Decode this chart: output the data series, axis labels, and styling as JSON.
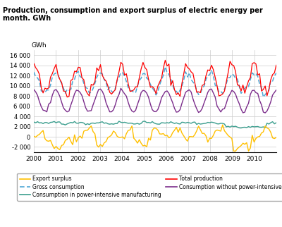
{
  "title_line1": "Production, consumption and export surplus of electric energy per",
  "title_line2": "month. GWh",
  "ylabel": "GWh",
  "ylim": [
    -3000,
    17000
  ],
  "xlim": [
    2000,
    2011.0
  ],
  "yticks": [
    -2000,
    0,
    2000,
    4000,
    6000,
    8000,
    10000,
    12000,
    14000,
    16000
  ],
  "ytick_labels": [
    "-2 000",
    "0",
    "2 000",
    "4 000",
    "6 000",
    "8 000",
    "10 000",
    "12 000",
    "14 000",
    "16 000"
  ],
  "xticks": [
    2000,
    2001,
    2002,
    2003,
    2004,
    2005,
    2006,
    2007,
    2008,
    2009,
    2010
  ],
  "colors": {
    "total_production": "#FF0000",
    "gross_consumption": "#4FA8D5",
    "export_surplus": "#FFC000",
    "consumption_power_intensive": "#3B9E8E",
    "consumption_without_power_intensive": "#7B2D8B"
  },
  "background": "#FFFFFF",
  "grid_color": "#CCCCCC"
}
